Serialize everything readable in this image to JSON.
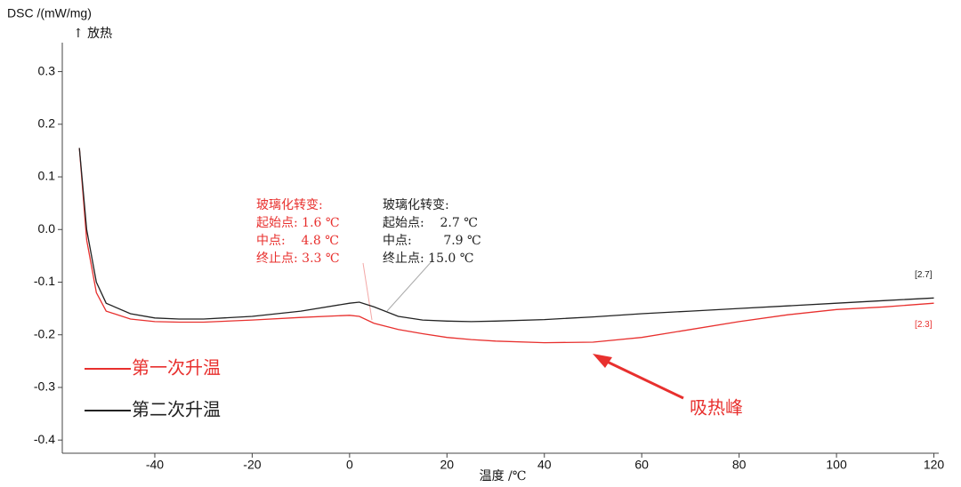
{
  "chart_data": {
    "type": "line",
    "y_label": "DSC /(mW/mg)",
    "y_label_note": "↑ 放热",
    "x_label": "温度 /℃",
    "x": [
      -55.5,
      -54,
      -52,
      -50,
      -45,
      -40,
      -35,
      -30,
      -20,
      -10,
      0,
      2,
      5,
      10,
      15,
      20,
      25,
      30,
      40,
      50,
      60,
      70,
      80,
      90,
      100,
      110,
      120
    ],
    "series": [
      {
        "name": "第一次升温",
        "color": "#e8302e",
        "end_label": "[2.3]",
        "values": [
          0.155,
          -0.02,
          -0.12,
          -0.155,
          -0.17,
          -0.175,
          -0.176,
          -0.176,
          -0.172,
          -0.167,
          -0.163,
          -0.165,
          -0.178,
          -0.19,
          -0.198,
          -0.205,
          -0.209,
          -0.212,
          -0.215,
          -0.214,
          -0.205,
          -0.19,
          -0.175,
          -0.162,
          -0.152,
          -0.147,
          -0.14
        ]
      },
      {
        "name": "第二次升温",
        "color": "#222222",
        "end_label": "[2.7]",
        "values": [
          0.155,
          0.0,
          -0.1,
          -0.14,
          -0.16,
          -0.168,
          -0.17,
          -0.17,
          -0.165,
          -0.155,
          -0.14,
          -0.138,
          -0.147,
          -0.165,
          -0.172,
          -0.174,
          -0.175,
          -0.174,
          -0.171,
          -0.166,
          -0.16,
          -0.155,
          -0.15,
          -0.145,
          -0.14,
          -0.135,
          -0.13
        ]
      }
    ],
    "annotations": [
      {
        "color": "#e8302e",
        "lines": [
          "玻璃化转变:",
          "起始点: 1.6 ℃",
          "中点:    4.8 ℃",
          "终止点: 3.3 ℃"
        ]
      },
      {
        "color": "#222222",
        "lines": [
          "玻璃化转变:",
          "起始点:    2.7 ℃",
          "中点:        7.9 ℃",
          "终止点: 15.0 ℃"
        ]
      }
    ],
    "peak_label": "吸热峰",
    "xlim": [
      -59,
      121
    ],
    "ylim": [
      -0.425,
      0.355
    ],
    "xticks": [
      -40,
      -20,
      0,
      20,
      40,
      60,
      80,
      100,
      120
    ],
    "yticks": [
      -0.4,
      -0.3,
      -0.2,
      -0.1,
      {
        "value": 0,
        "label": "0.0"
      },
      0.1,
      0.2,
      0.3
    ],
    "legend": "left"
  }
}
